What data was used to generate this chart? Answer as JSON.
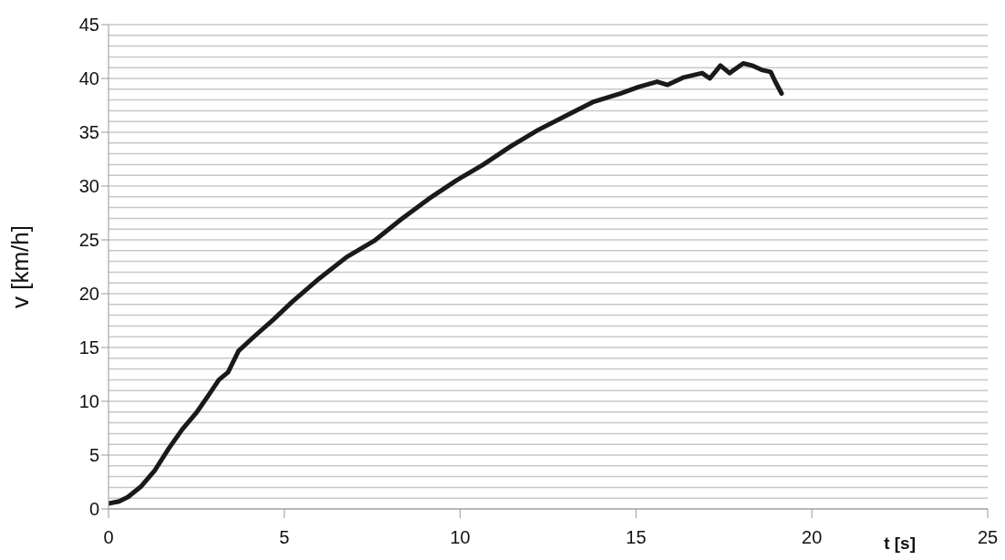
{
  "chart_data": {
    "type": "line",
    "xlabel": "t [s]",
    "ylabel": "v [km/h]",
    "xlim": [
      0,
      25
    ],
    "xticks": [
      0,
      5,
      10,
      15,
      20,
      25
    ],
    "ylim": [
      0,
      45
    ],
    "yticks": [
      0,
      {
        "value": 1,
        "label": null
      },
      {
        "value": 2,
        "label": null
      },
      {
        "value": 3,
        "label": null
      },
      {
        "value": 4,
        "label": null
      },
      5,
      {
        "value": 6,
        "label": null
      },
      {
        "value": 7,
        "label": null
      },
      {
        "value": 8,
        "label": null
      },
      {
        "value": 9,
        "label": null
      },
      10,
      {
        "value": 11,
        "label": null
      },
      {
        "value": 12,
        "label": null
      },
      {
        "value": 13,
        "label": null
      },
      {
        "value": 14,
        "label": null
      },
      15,
      {
        "value": 16,
        "label": null
      },
      {
        "value": 17,
        "label": null
      },
      {
        "value": 18,
        "label": null
      },
      {
        "value": 19,
        "label": null
      },
      20,
      {
        "value": 21,
        "label": null
      },
      {
        "value": 22,
        "label": null
      },
      {
        "value": 23,
        "label": null
      },
      {
        "value": 24,
        "label": null
      },
      25,
      {
        "value": 26,
        "label": null
      },
      {
        "value": 27,
        "label": null
      },
      {
        "value": 28,
        "label": null
      },
      {
        "value": 29,
        "label": null
      },
      30,
      {
        "value": 31,
        "label": null
      },
      {
        "value": 32,
        "label": null
      },
      {
        "value": 33,
        "label": null
      },
      {
        "value": 34,
        "label": null
      },
      35,
      {
        "value": 36,
        "label": null
      },
      {
        "value": 37,
        "label": null
      },
      {
        "value": 38,
        "label": null
      },
      {
        "value": 39,
        "label": null
      },
      40,
      {
        "value": 41,
        "label": null
      },
      {
        "value": 42,
        "label": null
      },
      {
        "value": 43,
        "label": null
      },
      {
        "value": 44,
        "label": null
      },
      45
    ],
    "grid": "y",
    "marker": "none",
    "line_style": "solid",
    "series": [
      {
        "color": "#1a1a1a",
        "x": [
          0,
          0.3,
          0.55,
          0.93,
          1.32,
          1.71,
          2.1,
          2.49,
          2.83,
          3.14,
          3.4,
          3.7,
          4.17,
          4.69,
          5.21,
          5.99,
          6.77,
          7.55,
          8.32,
          9.1,
          9.88,
          10.66,
          11.44,
          12.21,
          12.99,
          13.77,
          14.55,
          15.07,
          15.6,
          15.9,
          16.36,
          16.88,
          17.1,
          17.4,
          17.66,
          18.05,
          18.3,
          18.57,
          18.83,
          18.96,
          19.14
        ],
        "values": [
          0.5,
          0.7,
          1.1,
          2.1,
          3.6,
          5.6,
          7.4,
          8.9,
          10.5,
          12,
          12.7,
          14.7,
          16.1,
          17.6,
          19.2,
          21.4,
          23.4,
          24.9,
          26.9,
          28.8,
          30.5,
          32,
          33.7,
          35.2,
          36.5,
          37.8,
          38.6,
          39.2,
          39.7,
          39.4,
          40.1,
          40.5,
          40,
          41.2,
          40.5,
          41.4,
          41.2,
          40.8,
          40.6,
          39.7,
          38.6
        ]
      }
    ]
  }
}
